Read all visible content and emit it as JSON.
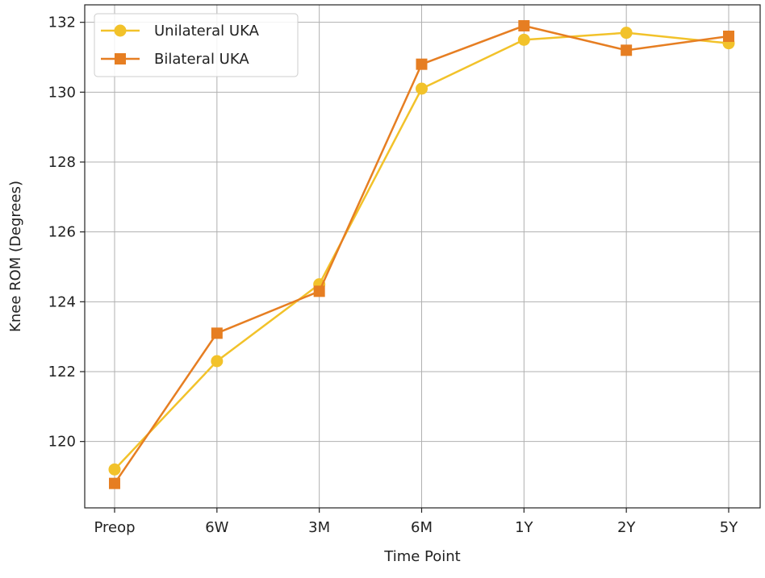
{
  "chart_data": {
    "type": "line",
    "xlabel": "Time Point",
    "ylabel": "Knee ROM (Degrees)",
    "categories": [
      "Preop",
      "6W",
      "3M",
      "6M",
      "1Y",
      "2Y",
      "5Y"
    ],
    "ylim": [
      118.1,
      132.5
    ],
    "yticks": [
      120,
      122,
      124,
      126,
      128,
      130,
      132
    ],
    "grid": true,
    "legend_position": "top-left",
    "series": [
      {
        "name": "Unilateral UKA",
        "marker": "circle",
        "color": "#f2c22a",
        "values": [
          119.2,
          122.3,
          124.5,
          130.1,
          131.5,
          131.7,
          131.4
        ]
      },
      {
        "name": "Bilateral UKA",
        "marker": "square",
        "color": "#e67e22",
        "values": [
          118.8,
          123.1,
          124.3,
          130.8,
          131.9,
          131.2,
          131.6
        ]
      }
    ]
  }
}
